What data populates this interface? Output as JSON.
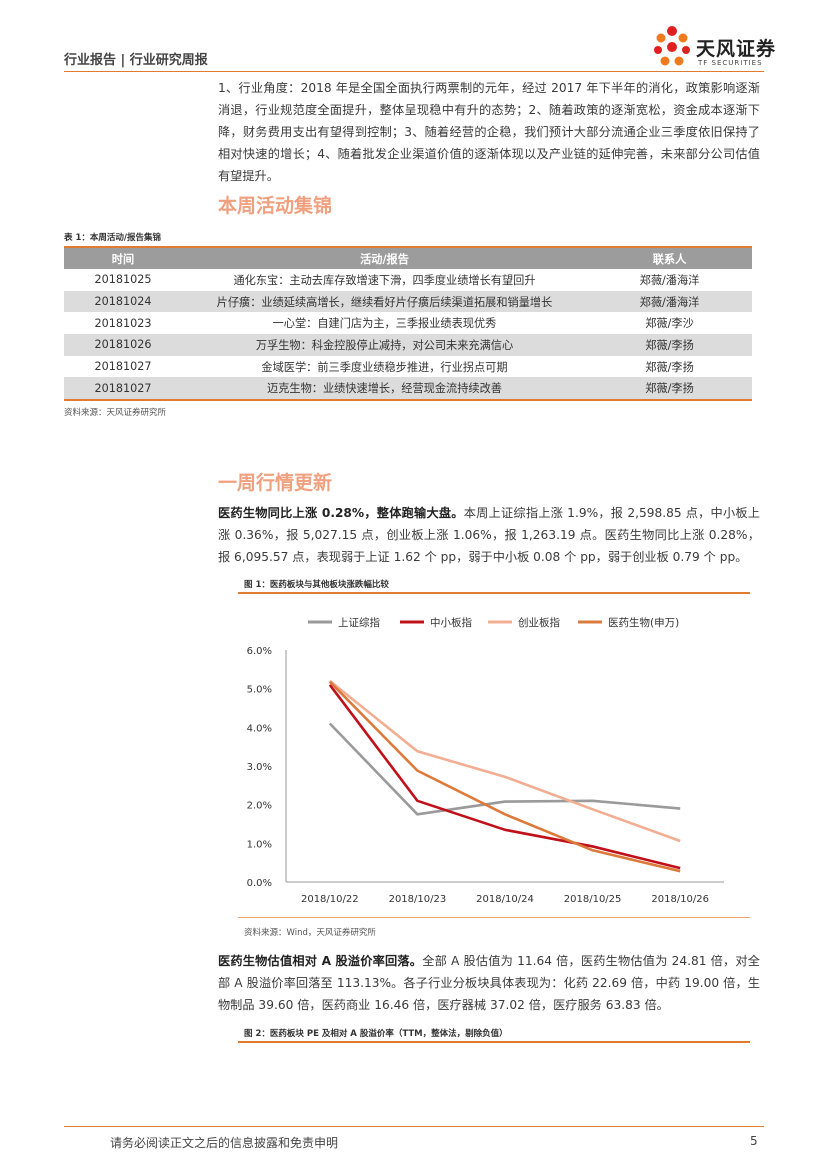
{
  "header": {
    "title": "行业报告 | 行业研究周报",
    "logo_cn": "天风证券",
    "logo_en": "TF SECURITIES"
  },
  "intro_paragraph": "1、行业角度：2018 年是全国全面执行两票制的元年，经过 2017 年下半年的消化，政策影响逐渐消退，行业规范度全面提升，整体呈现稳中有升的态势；2、随着政策的逐渐宽松，资金成本逐渐下降，财务费用支出有望得到控制；3、随着经营的企稳，我们预计大部分流通企业三季度依旧保持了相对快速的增长；4、随着批发企业渠道价值的逐渐体现以及产业链的延伸完善，未来部分公司估值有望提升。",
  "section1": {
    "title": "本周活动集锦",
    "table_caption": "表 1：本周活动/报告集锦",
    "columns": [
      "时间",
      "活动/报告",
      "联系人"
    ],
    "rows": [
      {
        "date": "20181025",
        "activity": "通化东宝：主动去库存致增速下滑，四季度业绩增长有望回升",
        "contact": "郑薇/潘海洋"
      },
      {
        "date": "20181024",
        "activity": "片仔癀：业绩延续高增长，继续看好片仔癀后续渠道拓展和销量增长",
        "contact": "郑薇/潘海洋"
      },
      {
        "date": "20181023",
        "activity": "一心堂：自建门店为主，三季报业绩表现优秀",
        "contact": "郑薇/李沙"
      },
      {
        "date": "20181026",
        "activity": "万孚生物：科金控股停止减持，对公司未来充满信心",
        "contact": "郑薇/李扬"
      },
      {
        "date": "20181027",
        "activity": "金域医学：前三季度业绩稳步推进，行业拐点可期",
        "contact": "郑薇/李扬"
      },
      {
        "date": "20181027",
        "activity": "迈克生物：业绩快速增长，经营现金流持续改善",
        "contact": "郑薇/李扬"
      }
    ],
    "source": "资料来源：天风证券研究所"
  },
  "section2": {
    "title": "一周行情更新",
    "para_lead": "医药生物同比上涨 0.28%，整体跑输大盘。",
    "para_body": "本周上证综指上涨 1.9%，报 2,598.85 点，中小板上涨 0.36%，报 5,027.15 点，创业板上涨 1.06%，报 1,263.19 点。医药生物同比上涨 0.28%，报 6,095.57 点，表现弱于上证 1.62 个 pp，弱于中小板 0.08 个 pp，弱于创业板 0.79 个 pp。",
    "fig1_caption": "图 1：医药板块与其他板块涨跌幅比较",
    "fig1_source": "资料来源：Wind，天风证券研究所",
    "para2_lead": "医药生物估值相对 A 股溢价率回落。",
    "para2_body": "全部 A 股估值为 11.64 倍，医药生物估值为 24.81 倍，对全部 A 股溢价率回落至 113.13%。各子行业分板块具体表现为：化药 22.69 倍，中药 19.00 倍，生物制品 39.60 倍，医药商业 16.46 倍，医疗器械 37.02 倍，医疗服务 63.83 倍。",
    "fig2_caption": "图 2：医药板块 PE 及相对 A 股溢价率（TTM，整体法，剔除负值）"
  },
  "chart_data": {
    "type": "line",
    "categories": [
      "2018/10/22",
      "2018/10/23",
      "2018/10/24",
      "2018/10/25",
      "2018/10/26"
    ],
    "ylim": [
      0,
      6
    ],
    "yticks": [
      "0.0%",
      "1.0%",
      "2.0%",
      "3.0%",
      "4.0%",
      "5.0%",
      "6.0%"
    ],
    "series": [
      {
        "name": "上证综指",
        "color": "#9a9a9a",
        "values": [
          4.1,
          1.75,
          2.08,
          2.1,
          1.9
        ]
      },
      {
        "name": "中小板指",
        "color": "#c0101a",
        "values": [
          5.1,
          2.1,
          1.35,
          0.92,
          0.36
        ]
      },
      {
        "name": "创业板指",
        "color": "#f2ae92",
        "values": [
          5.2,
          3.38,
          2.72,
          1.88,
          1.06
        ]
      },
      {
        "name": "医药生物(申万)",
        "color": "#dc7a3c",
        "values": [
          5.18,
          2.88,
          1.75,
          0.82,
          0.28
        ]
      }
    ]
  },
  "footer": {
    "disclaimer": "请务必阅读正文之后的信息披露和免责申明",
    "page": "5"
  }
}
